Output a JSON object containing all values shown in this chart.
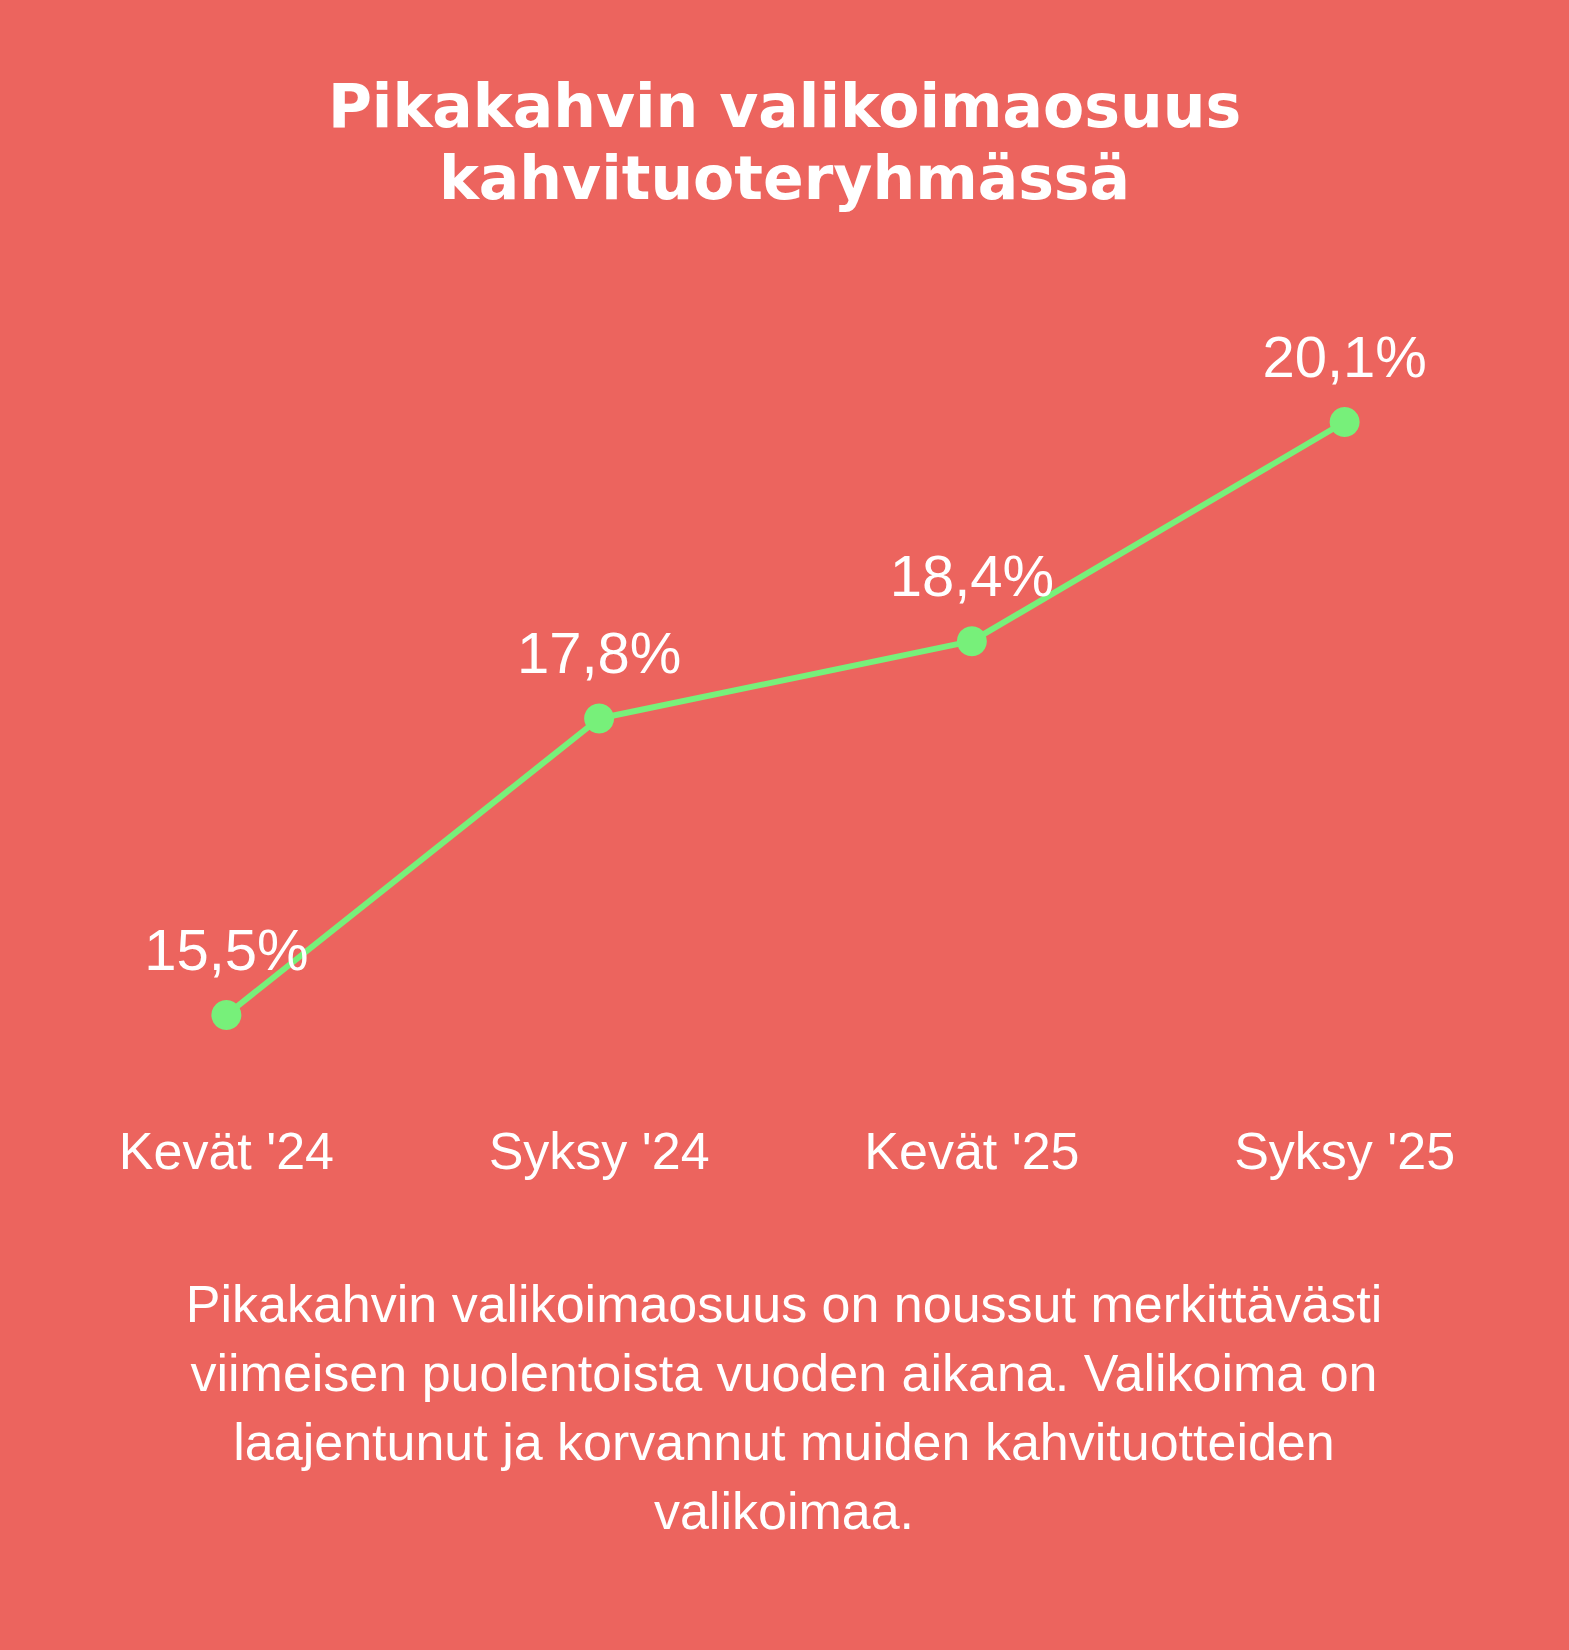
{
  "chart_data": {
    "type": "line",
    "title": "Pikakahvin valikoimaosuus kahvituoteryhmässä",
    "categories": [
      "Kevät '24",
      "Syksy '24",
      "Kevät '25",
      "Syksy '25"
    ],
    "series": [
      {
        "color": "#77f07a",
        "values": [
          15.5,
          17.8,
          18.4,
          20.1
        ],
        "value_labels": [
          "15,5%",
          "17,8%",
          "18,4%",
          "20,1%"
        ]
      }
    ],
    "marker": "circle",
    "line_style": "solid",
    "annotations": [
      "Pikakahvin valikoimaosuus on noussut merkittävästi viimeisen puolentoista vuoden aikana. Valikoima on laajentunut ja korvannut muiden kahvituotteiden valikoimaa."
    ]
  }
}
